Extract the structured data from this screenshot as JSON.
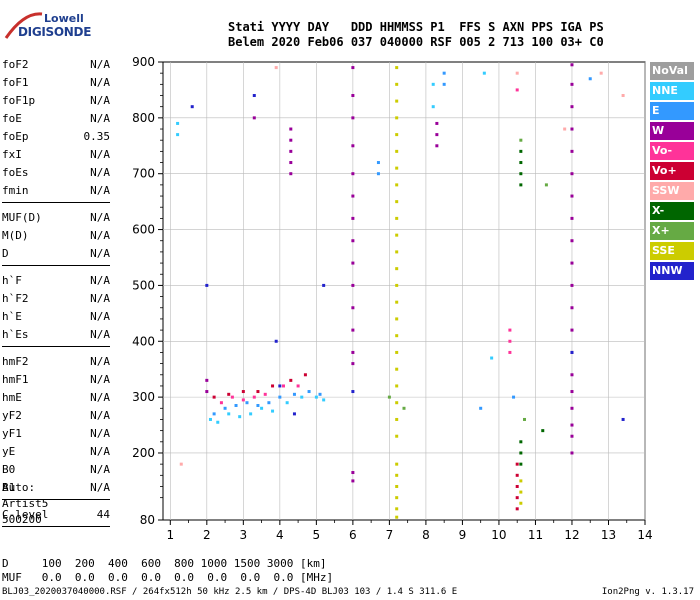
{
  "logo": {
    "line1": "Lowell",
    "line2": "DIGISONDE"
  },
  "header": {
    "labels": "Stati YYYY DAY   DDD HHMMSS P1  FFS S AXN PPS IGA PS",
    "values": "Belem 2020 Feb06 037 040000 RSF 005 2 713 100 03+ C0"
  },
  "params_group1": [
    {
      "name": "foF2",
      "value": "N/A"
    },
    {
      "name": "foF1",
      "value": "N/A"
    },
    {
      "name": "foF1p",
      "value": "N/A"
    },
    {
      "name": "foE",
      "value": "N/A"
    },
    {
      "name": "foEp",
      "value": "0.35"
    },
    {
      "name": "fxI",
      "value": "N/A"
    },
    {
      "name": "foEs",
      "value": "N/A"
    },
    {
      "name": "fmin",
      "value": "N/A"
    }
  ],
  "params_group2": [
    {
      "name": "MUF(D)",
      "value": "N/A"
    },
    {
      "name": "M(D)",
      "value": "N/A"
    },
    {
      "name": "D",
      "value": "N/A"
    }
  ],
  "params_group3": [
    {
      "name": "h`F",
      "value": "N/A"
    },
    {
      "name": "h`F2",
      "value": "N/A"
    },
    {
      "name": "h`E",
      "value": "N/A"
    },
    {
      "name": "h`Es",
      "value": "N/A"
    }
  ],
  "params_group4": [
    {
      "name": "hmF2",
      "value": "N/A"
    },
    {
      "name": "hmF1",
      "value": "N/A"
    },
    {
      "name": "hmE",
      "value": "N/A"
    },
    {
      "name": "yF2",
      "value": "N/A"
    },
    {
      "name": "yF1",
      "value": "N/A"
    },
    {
      "name": "yE",
      "value": "N/A"
    },
    {
      "name": "B0",
      "value": "N/A"
    },
    {
      "name": "B1",
      "value": "N/A"
    }
  ],
  "clevel": {
    "name": "C-level",
    "value": "44"
  },
  "auto": {
    "line1": "Auto:",
    "line2": "Artist5",
    "line3": "500200"
  },
  "table_row_d": "D     100  200  400  600  800 1000 1500 3000 [km]",
  "table_row_muf": "MUF   0.0  0.0  0.0  0.0  0.0  0.0  0.0  0.0 [MHz]",
  "footer": "BLJ03_2020037040000.RSF / 264fx512h 50 kHz 2.5 km / DPS-4D BLJ03 103 / 1.4 S 311.6 E",
  "version": "Ion2Png v. 1.3.17",
  "legend": [
    {
      "label": "NoVal",
      "color": "#9e9e9e"
    },
    {
      "label": "NNE",
      "color": "#33ccff"
    },
    {
      "label": "E",
      "color": "#3399ff"
    },
    {
      "label": "W",
      "color": "#990099"
    },
    {
      "label": "Vo-",
      "color": "#ff3399"
    },
    {
      "label": "Vo+",
      "color": "#cc0033"
    },
    {
      "label": "SSW",
      "color": "#ffaaaa"
    },
    {
      "label": "X-",
      "color": "#006600"
    },
    {
      "label": "X+",
      "color": "#66aa44"
    },
    {
      "label": "SSE",
      "color": "#cccc00"
    },
    {
      "label": "NNW",
      "color": "#2222cc"
    }
  ],
  "chart_data": {
    "type": "scatter",
    "title": "",
    "xlabel": "",
    "ylabel": "",
    "xlim": [
      0.8,
      14.0
    ],
    "ylim": [
      80,
      900
    ],
    "x_ticks": [
      1,
      2,
      3,
      4,
      5,
      6,
      7,
      8,
      9,
      10,
      11,
      12,
      13,
      14
    ],
    "y_ticks": [
      80,
      200,
      300,
      400,
      500,
      600,
      700,
      800,
      900
    ],
    "grid": true,
    "series": [
      {
        "name": "W",
        "color": "#990099",
        "points": [
          [
            6.0,
            890
          ],
          [
            6.0,
            840
          ],
          [
            6.0,
            800
          ],
          [
            6.0,
            750
          ],
          [
            6.0,
            700
          ],
          [
            6.0,
            660
          ],
          [
            6.0,
            620
          ],
          [
            6.0,
            580
          ],
          [
            6.0,
            540
          ],
          [
            6.0,
            500
          ],
          [
            6.0,
            460
          ],
          [
            6.0,
            420
          ],
          [
            6.0,
            380
          ],
          [
            6.0,
            360
          ],
          [
            6.0,
            165
          ],
          [
            6.0,
            150
          ],
          [
            12.0,
            895
          ],
          [
            12.0,
            860
          ],
          [
            12.0,
            820
          ],
          [
            12.0,
            780
          ],
          [
            12.0,
            740
          ],
          [
            12.0,
            700
          ],
          [
            12.0,
            660
          ],
          [
            12.0,
            620
          ],
          [
            12.0,
            580
          ],
          [
            12.0,
            540
          ],
          [
            12.0,
            500
          ],
          [
            12.0,
            460
          ],
          [
            12.0,
            420
          ],
          [
            12.0,
            380
          ],
          [
            12.0,
            340
          ],
          [
            12.0,
            310
          ],
          [
            12.0,
            280
          ],
          [
            12.0,
            250
          ],
          [
            12.0,
            230
          ],
          [
            12.0,
            200
          ],
          [
            4.3,
            780
          ],
          [
            4.3,
            760
          ],
          [
            4.3,
            740
          ],
          [
            4.3,
            720
          ],
          [
            4.3,
            700
          ],
          [
            8.3,
            790
          ],
          [
            8.3,
            770
          ],
          [
            8.3,
            750
          ],
          [
            2.0,
            330
          ],
          [
            2.0,
            310
          ],
          [
            3.3,
            800
          ]
        ]
      },
      {
        "name": "SSE",
        "color": "#cccc00",
        "points": [
          [
            7.2,
            890
          ],
          [
            7.2,
            860
          ],
          [
            7.2,
            830
          ],
          [
            7.2,
            800
          ],
          [
            7.2,
            770
          ],
          [
            7.2,
            740
          ],
          [
            7.2,
            710
          ],
          [
            7.2,
            680
          ],
          [
            7.2,
            650
          ],
          [
            7.2,
            620
          ],
          [
            7.2,
            590
          ],
          [
            7.2,
            560
          ],
          [
            7.2,
            530
          ],
          [
            7.2,
            500
          ],
          [
            7.2,
            470
          ],
          [
            7.2,
            440
          ],
          [
            7.2,
            410
          ],
          [
            7.2,
            380
          ],
          [
            7.2,
            350
          ],
          [
            7.2,
            320
          ],
          [
            7.2,
            290
          ],
          [
            7.2,
            260
          ],
          [
            7.2,
            230
          ],
          [
            7.2,
            180
          ],
          [
            7.2,
            160
          ],
          [
            7.2,
            140
          ],
          [
            7.2,
            120
          ],
          [
            7.2,
            100
          ],
          [
            7.2,
            85
          ],
          [
            10.6,
            150
          ],
          [
            10.6,
            130
          ],
          [
            10.6,
            110
          ]
        ]
      },
      {
        "name": "NNE",
        "color": "#33ccff",
        "points": [
          [
            1.2,
            790
          ],
          [
            1.2,
            770
          ],
          [
            2.1,
            260
          ],
          [
            2.3,
            255
          ],
          [
            2.6,
            270
          ],
          [
            2.9,
            265
          ],
          [
            3.2,
            270
          ],
          [
            3.5,
            280
          ],
          [
            3.8,
            275
          ],
          [
            4.2,
            290
          ],
          [
            4.6,
            300
          ],
          [
            5.0,
            300
          ],
          [
            5.2,
            295
          ],
          [
            8.2,
            860
          ],
          [
            8.2,
            820
          ],
          [
            9.6,
            880
          ],
          [
            9.8,
            370
          ]
        ]
      },
      {
        "name": "E",
        "color": "#3399ff",
        "points": [
          [
            2.2,
            270
          ],
          [
            2.5,
            280
          ],
          [
            2.8,
            285
          ],
          [
            3.1,
            290
          ],
          [
            3.4,
            285
          ],
          [
            3.7,
            290
          ],
          [
            4.0,
            300
          ],
          [
            4.4,
            305
          ],
          [
            4.8,
            310
          ],
          [
            5.1,
            305
          ],
          [
            6.7,
            720
          ],
          [
            6.7,
            700
          ],
          [
            8.5,
            880
          ],
          [
            8.5,
            860
          ],
          [
            9.5,
            280
          ],
          [
            10.4,
            300
          ],
          [
            12.5,
            870
          ]
        ]
      },
      {
        "name": "Vo-",
        "color": "#ff3399",
        "points": [
          [
            2.4,
            290
          ],
          [
            2.7,
            300
          ],
          [
            3.0,
            295
          ],
          [
            3.3,
            300
          ],
          [
            3.6,
            305
          ],
          [
            4.1,
            320
          ],
          [
            4.5,
            320
          ],
          [
            10.3,
            420
          ],
          [
            10.3,
            400
          ],
          [
            10.3,
            380
          ],
          [
            10.5,
            850
          ]
        ]
      },
      {
        "name": "Vo+",
        "color": "#cc0033",
        "points": [
          [
            2.2,
            300
          ],
          [
            2.6,
            305
          ],
          [
            3.0,
            310
          ],
          [
            3.4,
            310
          ],
          [
            3.8,
            320
          ],
          [
            4.3,
            330
          ],
          [
            4.7,
            340
          ],
          [
            10.5,
            180
          ],
          [
            10.5,
            160
          ],
          [
            10.5,
            140
          ],
          [
            10.5,
            120
          ],
          [
            10.5,
            100
          ]
        ]
      },
      {
        "name": "SSW",
        "color": "#ffaaaa",
        "points": [
          [
            1.3,
            180
          ],
          [
            3.9,
            890
          ],
          [
            10.5,
            880
          ],
          [
            12.8,
            880
          ],
          [
            11.8,
            780
          ],
          [
            13.4,
            840
          ]
        ]
      },
      {
        "name": "X-",
        "color": "#006600",
        "points": [
          [
            10.6,
            740
          ],
          [
            10.6,
            720
          ],
          [
            10.6,
            700
          ],
          [
            10.6,
            680
          ],
          [
            10.6,
            220
          ],
          [
            10.6,
            200
          ],
          [
            10.6,
            180
          ],
          [
            11.2,
            240
          ]
        ]
      },
      {
        "name": "X+",
        "color": "#66aa44",
        "points": [
          [
            7.0,
            300
          ],
          [
            7.4,
            280
          ],
          [
            10.6,
            760
          ],
          [
            10.7,
            260
          ],
          [
            11.3,
            680
          ]
        ]
      },
      {
        "name": "NNW",
        "color": "#2222cc",
        "points": [
          [
            1.6,
            820
          ],
          [
            2.0,
            500
          ],
          [
            3.3,
            840
          ],
          [
            3.9,
            400
          ],
          [
            4.0,
            320
          ],
          [
            4.4,
            270
          ],
          [
            5.2,
            500
          ],
          [
            6.0,
            310
          ],
          [
            12.0,
            380
          ],
          [
            13.4,
            260
          ]
        ]
      }
    ]
  }
}
